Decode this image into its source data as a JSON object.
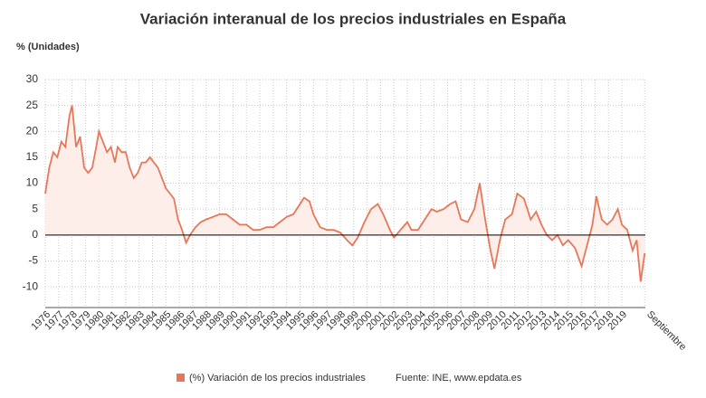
{
  "chart_data": {
    "type": "line",
    "title": "Variación interanual de los precios industriales en España",
    "y_label": "% (Unidades)",
    "source": "Fuente: INE, www.epdata.es",
    "series": [
      {
        "name": "(%) Variación de los precios industriales",
        "color": "#e8775a",
        "fill": "#fdeeea",
        "x": [
          1976.0,
          1976.3,
          1976.6,
          1976.9,
          1977.2,
          1977.5,
          1977.8,
          1978.0,
          1978.3,
          1978.6,
          1978.9,
          1979.2,
          1979.5,
          1979.8,
          1980.0,
          1980.3,
          1980.6,
          1980.9,
          1981.2,
          1981.4,
          1981.7,
          1982.0,
          1982.3,
          1982.6,
          1982.9,
          1983.2,
          1983.5,
          1983.8,
          1984.1,
          1984.4,
          1984.7,
          1985.0,
          1985.3,
          1985.6,
          1985.9,
          1986.2,
          1986.5,
          1986.8,
          1987.2,
          1987.6,
          1988.0,
          1988.5,
          1989.0,
          1989.5,
          1990.0,
          1990.5,
          1991.0,
          1991.5,
          1992.0,
          1992.5,
          1993.0,
          1993.5,
          1994.0,
          1994.5,
          1995.0,
          1995.3,
          1995.7,
          1996.0,
          1996.5,
          1997.0,
          1997.5,
          1998.0,
          1998.5,
          1998.9,
          1999.3,
          1999.8,
          2000.3,
          2000.8,
          2001.2,
          2001.7,
          2002.0,
          2002.5,
          2003.0,
          2003.3,
          2003.8,
          2004.3,
          2004.8,
          2005.2,
          2005.7,
          2006.2,
          2006.6,
          2007.0,
          2007.5,
          2008.0,
          2008.4,
          2008.8,
          2009.2,
          2009.5,
          2009.9,
          2010.3,
          2010.8,
          2011.2,
          2011.7,
          2012.2,
          2012.6,
          2013.0,
          2013.4,
          2013.8,
          2014.2,
          2014.6,
          2015.0,
          2015.5,
          2016.0,
          2016.4,
          2016.8,
          2017.1,
          2017.5,
          2017.9,
          2018.3,
          2018.7,
          2019.0,
          2019.4,
          2019.8,
          2020.1,
          2020.4,
          2020.7
        ],
        "values": [
          8,
          13,
          16,
          15,
          18,
          17,
          23,
          25,
          17,
          19,
          13,
          12,
          13,
          17,
          20,
          18,
          16,
          17,
          14,
          17,
          16,
          16,
          13,
          11,
          12,
          14,
          14,
          15,
          14,
          13,
          11,
          9,
          8,
          7,
          3,
          1,
          -1.5,
          0,
          1.5,
          2.5,
          3,
          3.5,
          4,
          4,
          3,
          2,
          2,
          1,
          1,
          1.5,
          1.5,
          2.5,
          3.5,
          4,
          6,
          7.2,
          6.5,
          4,
          1.5,
          1,
          1,
          0.5,
          -1,
          -2,
          -0.5,
          2.5,
          5,
          6,
          4,
          1,
          -0.5,
          1,
          2.5,
          1,
          1,
          3,
          5,
          4.5,
          5,
          6,
          6.5,
          3,
          2.5,
          5,
          10,
          3,
          -3,
          -6.5,
          -1,
          3,
          4,
          8,
          7,
          3,
          4.5,
          2,
          0,
          -1,
          0,
          -2,
          -1,
          -2.5,
          -6,
          -2,
          2,
          7.5,
          3,
          2,
          3,
          5,
          2,
          1,
          -3,
          -1,
          -9,
          -3.5
        ]
      }
    ],
    "xlim": [
      1976,
      2020.75
    ],
    "xticks": [
      1976,
      1977,
      1978,
      1979,
      1980,
      1981,
      1982,
      1983,
      1984,
      1985,
      1986,
      1987,
      1988,
      1989,
      1990,
      1991,
      1992,
      1993,
      1994,
      1995,
      1996,
      1997,
      1998,
      1999,
      2000,
      2001,
      2002,
      2003,
      2004,
      2005,
      2006,
      2007,
      2008,
      2009,
      2010,
      2011,
      2012,
      2013,
      2014,
      2015,
      2016,
      2017,
      2018,
      2019,
      {
        "value": 2020.7,
        "label": "Septiembre"
      }
    ],
    "ylim": [
      -14,
      30
    ],
    "yticks": [
      -10,
      -5,
      0,
      5,
      10,
      15,
      20,
      25,
      30
    ],
    "grid": true
  }
}
